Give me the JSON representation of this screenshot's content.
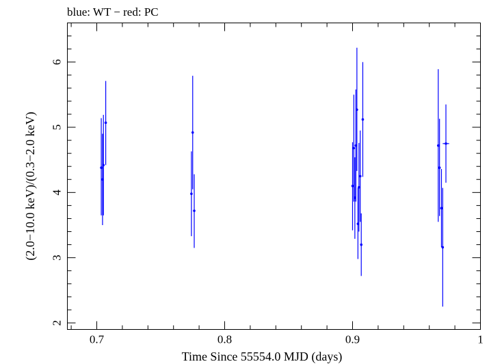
{
  "chart_data": {
    "type": "scatter",
    "title": "blue: WT − red: PC",
    "xlabel": "Time Since 55554.0 MJD (days)",
    "ylabel": "(2.0−10.0 keV)/(0.3−2.0 keV)",
    "xlim": [
      0.677,
      1.0
    ],
    "ylim": [
      1.9,
      6.6
    ],
    "x_ticks": [
      0.7,
      0.8,
      0.9,
      1.0
    ],
    "x_tick_labels": [
      "0.7",
      "0.8",
      "0.9",
      "1"
    ],
    "y_ticks": [
      2,
      3,
      4,
      5,
      6
    ],
    "y_tick_labels": [
      "2",
      "3",
      "4",
      "5",
      "6"
    ],
    "grid": false,
    "legend": "none",
    "series": [
      {
        "color": "#0000ff",
        "points": [
          {
            "x": 0.7035,
            "y": 4.38,
            "ylo": 3.65,
            "yhi": 5.14,
            "xerr": 0.0005
          },
          {
            "x": 0.7045,
            "y": 4.2,
            "ylo": 3.5,
            "yhi": 4.9,
            "xerr": 0.0005
          },
          {
            "x": 0.7052,
            "y": 4.42,
            "ylo": 3.65,
            "yhi": 5.19,
            "xerr": 0.0005
          },
          {
            "x": 0.707,
            "y": 5.07,
            "ylo": 4.42,
            "yhi": 5.71,
            "xerr": 0.0005
          },
          {
            "x": 0.774,
            "y": 3.98,
            "ylo": 3.33,
            "yhi": 4.63,
            "xerr": 0.0005
          },
          {
            "x": 0.775,
            "y": 4.92,
            "ylo": 4.05,
            "yhi": 5.79,
            "xerr": 0.0005
          },
          {
            "x": 0.7762,
            "y": 3.72,
            "ylo": 3.15,
            "yhi": 4.28,
            "xerr": 0.0005
          },
          {
            "x": 0.9,
            "y": 4.1,
            "ylo": 3.42,
            "yhi": 4.77,
            "xerr": 0.0004
          },
          {
            "x": 0.901,
            "y": 4.68,
            "ylo": 3.86,
            "yhi": 5.5,
            "xerr": 0.0004
          },
          {
            "x": 0.9018,
            "y": 3.92,
            "ylo": 3.29,
            "yhi": 4.54,
            "xerr": 0.0004
          },
          {
            "x": 0.9026,
            "y": 4.72,
            "ylo": 3.86,
            "yhi": 5.58,
            "xerr": 0.0004
          },
          {
            "x": 0.9034,
            "y": 5.27,
            "ylo": 4.33,
            "yhi": 6.22,
            "xerr": 0.0004
          },
          {
            "x": 0.9042,
            "y": 3.52,
            "ylo": 2.98,
            "yhi": 4.07,
            "xerr": 0.0004
          },
          {
            "x": 0.905,
            "y": 4.08,
            "ylo": 3.4,
            "yhi": 4.76,
            "xerr": 0.0004
          },
          {
            "x": 0.906,
            "y": 4.25,
            "ylo": 3.55,
            "yhi": 4.95,
            "xerr": 0.0004
          },
          {
            "x": 0.9068,
            "y": 3.2,
            "ylo": 2.72,
            "yhi": 3.68,
            "xerr": 0.0004
          },
          {
            "x": 0.908,
            "y": 5.12,
            "ylo": 4.24,
            "yhi": 6.0,
            "xerr": 0.0004
          },
          {
            "x": 0.967,
            "y": 4.72,
            "ylo": 3.55,
            "yhi": 5.89,
            "xerr": 0.0005
          },
          {
            "x": 0.968,
            "y": 4.38,
            "ylo": 3.64,
            "yhi": 5.13,
            "xerr": 0.0005
          },
          {
            "x": 0.9695,
            "y": 3.76,
            "ylo": 3.16,
            "yhi": 4.36,
            "xerr": 0.0005
          },
          {
            "x": 0.9705,
            "y": 3.16,
            "ylo": 2.25,
            "yhi": 4.07,
            "xerr": 0.0005
          },
          {
            "x": 0.973,
            "y": 4.75,
            "ylo": 4.15,
            "yhi": 5.35,
            "xerr": 0.0025
          }
        ]
      }
    ]
  }
}
